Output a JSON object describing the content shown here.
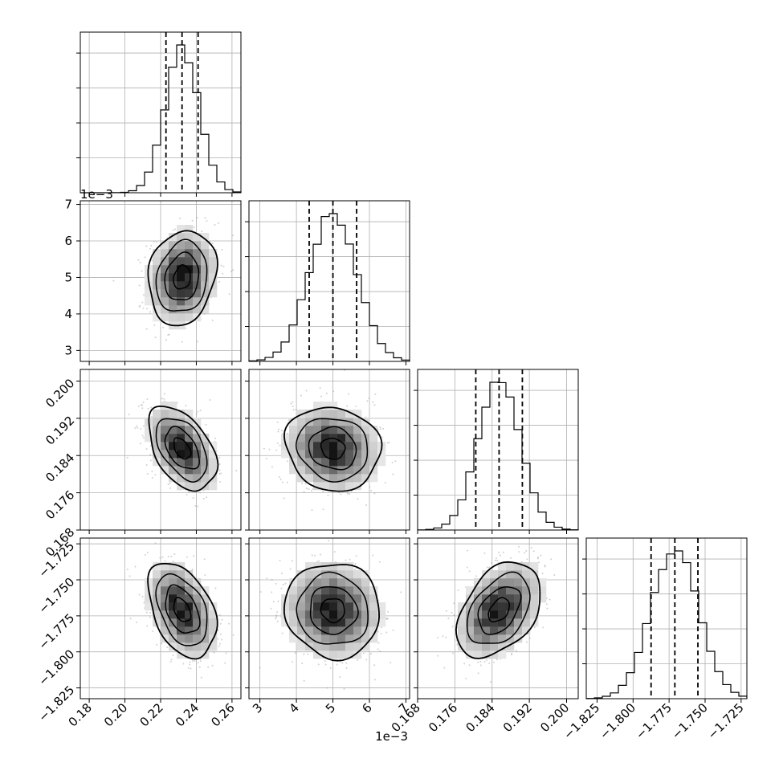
{
  "chart_data": {
    "type": "corner",
    "grid": true,
    "parameters": [
      {
        "range": [
          0.175,
          0.265
        ],
        "mean": 0.232,
        "sd": 0.0095,
        "quantiles": [
          0.223,
          0.232,
          0.241
        ],
        "ticks": [
          0.18,
          0.2,
          0.22,
          0.24,
          0.26
        ],
        "tick_labels": [
          "0.18",
          "0.20",
          "0.22",
          "0.24",
          "0.26"
        ],
        "exponent_label": ""
      },
      {
        "range": [
          2.7,
          7.1
        ],
        "mean": 5.0,
        "sd": 0.65,
        "quantiles": [
          4.35,
          5.0,
          5.65
        ],
        "ticks": [
          3,
          4,
          5,
          6,
          7
        ],
        "tick_labels": [
          "3",
          "4",
          "5",
          "6",
          "7"
        ],
        "exponent_label": "1e−3"
      },
      {
        "range": [
          0.168,
          0.2025
        ],
        "mean": 0.1855,
        "sd": 0.0045,
        "quantiles": [
          0.1805,
          0.1855,
          0.1905
        ],
        "ticks": [
          0.168,
          0.176,
          0.184,
          0.192,
          0.2
        ],
        "tick_labels": [
          "0.168",
          "0.176",
          "0.184",
          "0.192",
          "0.200"
        ],
        "exponent_label": ""
      },
      {
        "range": [
          -1.8325,
          -1.721
        ],
        "mean": -1.771,
        "sd": 0.0165,
        "quantiles": [
          -1.7875,
          -1.771,
          -1.755
        ],
        "ticks": [
          -1.825,
          -1.8,
          -1.775,
          -1.75,
          -1.725
        ],
        "tick_labels": [
          "−1.825",
          "−1.800",
          "−1.775",
          "−1.750",
          "−1.725"
        ],
        "exponent_label": ""
      }
    ],
    "correlations": [
      {
        "x": 0,
        "y": 1,
        "rho": 0.15
      },
      {
        "x": 0,
        "y": 2,
        "rho": -0.45
      },
      {
        "x": 1,
        "y": 2,
        "rho": -0.1
      },
      {
        "x": 0,
        "y": 3,
        "rho": -0.4
      },
      {
        "x": 1,
        "y": 3,
        "rho": -0.05
      },
      {
        "x": 2,
        "y": 3,
        "rho": 0.4
      }
    ],
    "contour_levels_sigma": [
      0.5,
      1.0,
      1.5,
      2.0
    ],
    "line_color": "#000000",
    "grid_color": "#b0b0b0",
    "scatter_color": "#9a9a9a"
  }
}
